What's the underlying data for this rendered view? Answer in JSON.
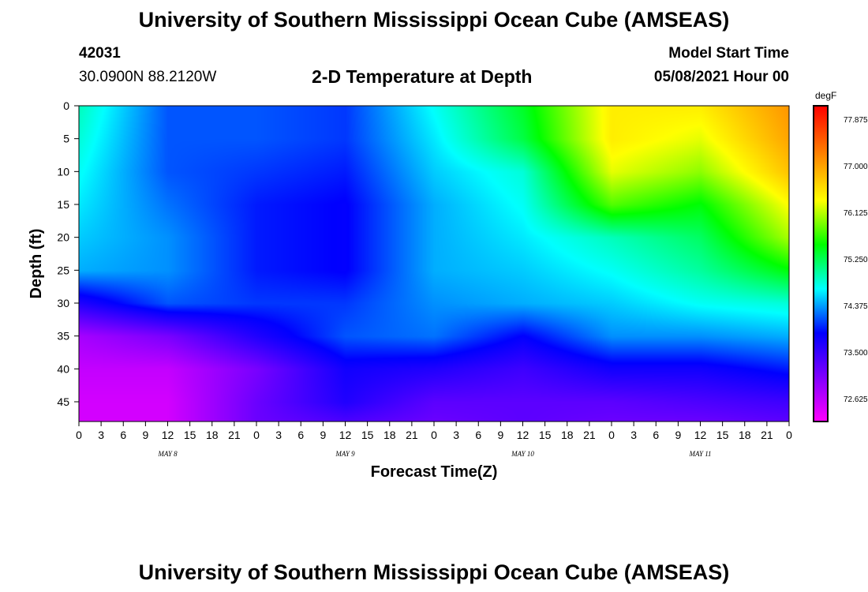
{
  "header": {
    "title": "University of Southern Mississippi Ocean Cube (AMSEAS)",
    "station_id": "42031",
    "location": "30.0900N  88.2120W",
    "plot_title": "2-D Temperature at Depth",
    "model_start_label": "Model Start Time",
    "model_start_value": "05/08/2021 Hour 00"
  },
  "footer": {
    "title": "University of Southern Mississippi Ocean Cube (AMSEAS)"
  },
  "chart_data": {
    "type": "heatmap",
    "title": "2-D Temperature at Depth",
    "xlabel": "Forecast Time(Z)",
    "ylabel": "Depth (ft)",
    "x_tick_labels": [
      "0",
      "3",
      "6",
      "9",
      "12",
      "15",
      "18",
      "21",
      "0",
      "3",
      "6",
      "9",
      "12",
      "15",
      "18",
      "21",
      "0",
      "3",
      "6",
      "9",
      "12",
      "15",
      "18",
      "21",
      "0",
      "3",
      "6",
      "9",
      "12",
      "15",
      "18",
      "21",
      "0"
    ],
    "date_labels": [
      "MAY 8",
      "MAY 9",
      "MAY 10",
      "MAY 11"
    ],
    "x_range_hours": [
      0,
      96
    ],
    "ylim": [
      0,
      48
    ],
    "y_ticks": [
      0,
      5,
      10,
      15,
      20,
      25,
      30,
      35,
      40,
      45
    ],
    "y_inverted": true,
    "colorbar": {
      "unit": "degF",
      "tick_labels": [
        "77.875",
        "77.000",
        "76.125",
        "75.250",
        "74.375",
        "73.500",
        "72.625"
      ],
      "range": [
        72.2,
        78.2
      ],
      "colors": [
        "#ff00ff",
        "#8000ff",
        "#0000ff",
        "#00ffff",
        "#00ff00",
        "#ffff00",
        "#ff8000",
        "#ff0000"
      ]
    },
    "depth_rows_ft": [
      0,
      5,
      10,
      15,
      20,
      25,
      30,
      35,
      40,
      45,
      48
    ],
    "hours": [
      0,
      12,
      24,
      36,
      48,
      60,
      72,
      84,
      96
    ],
    "values_degF": [
      [
        75.0,
        74.2,
        74.2,
        74.1,
        74.8,
        75.5,
        76.6,
        76.6,
        77.2
      ],
      [
        74.9,
        74.2,
        74.2,
        74.1,
        74.7,
        75.4,
        76.6,
        76.4,
        77.1
      ],
      [
        74.8,
        74.2,
        74.1,
        74.0,
        74.6,
        74.9,
        76.4,
        76.1,
        76.9
      ],
      [
        74.7,
        74.3,
        74.0,
        73.9,
        74.5,
        74.8,
        75.9,
        75.6,
        76.5
      ],
      [
        74.6,
        74.4,
        74.0,
        73.9,
        74.5,
        74.7,
        75.0,
        75.3,
        76.2
      ],
      [
        74.5,
        74.4,
        74.0,
        73.9,
        74.5,
        74.6,
        74.8,
        75.1,
        75.6
      ],
      [
        73.7,
        74.2,
        74.1,
        74.1,
        74.4,
        74.5,
        74.6,
        74.8,
        74.9
      ],
      [
        72.8,
        73.1,
        73.7,
        74.2,
        74.3,
        73.9,
        74.4,
        74.4,
        74.5
      ],
      [
        72.6,
        72.6,
        73.1,
        73.8,
        73.7,
        73.5,
        73.8,
        73.8,
        74.0
      ],
      [
        72.5,
        72.5,
        73.2,
        73.7,
        73.3,
        73.3,
        73.3,
        73.4,
        73.5
      ],
      [
        72.5,
        72.5,
        73.2,
        73.4,
        73.2,
        73.3,
        73.2,
        73.2,
        73.3
      ]
    ]
  }
}
